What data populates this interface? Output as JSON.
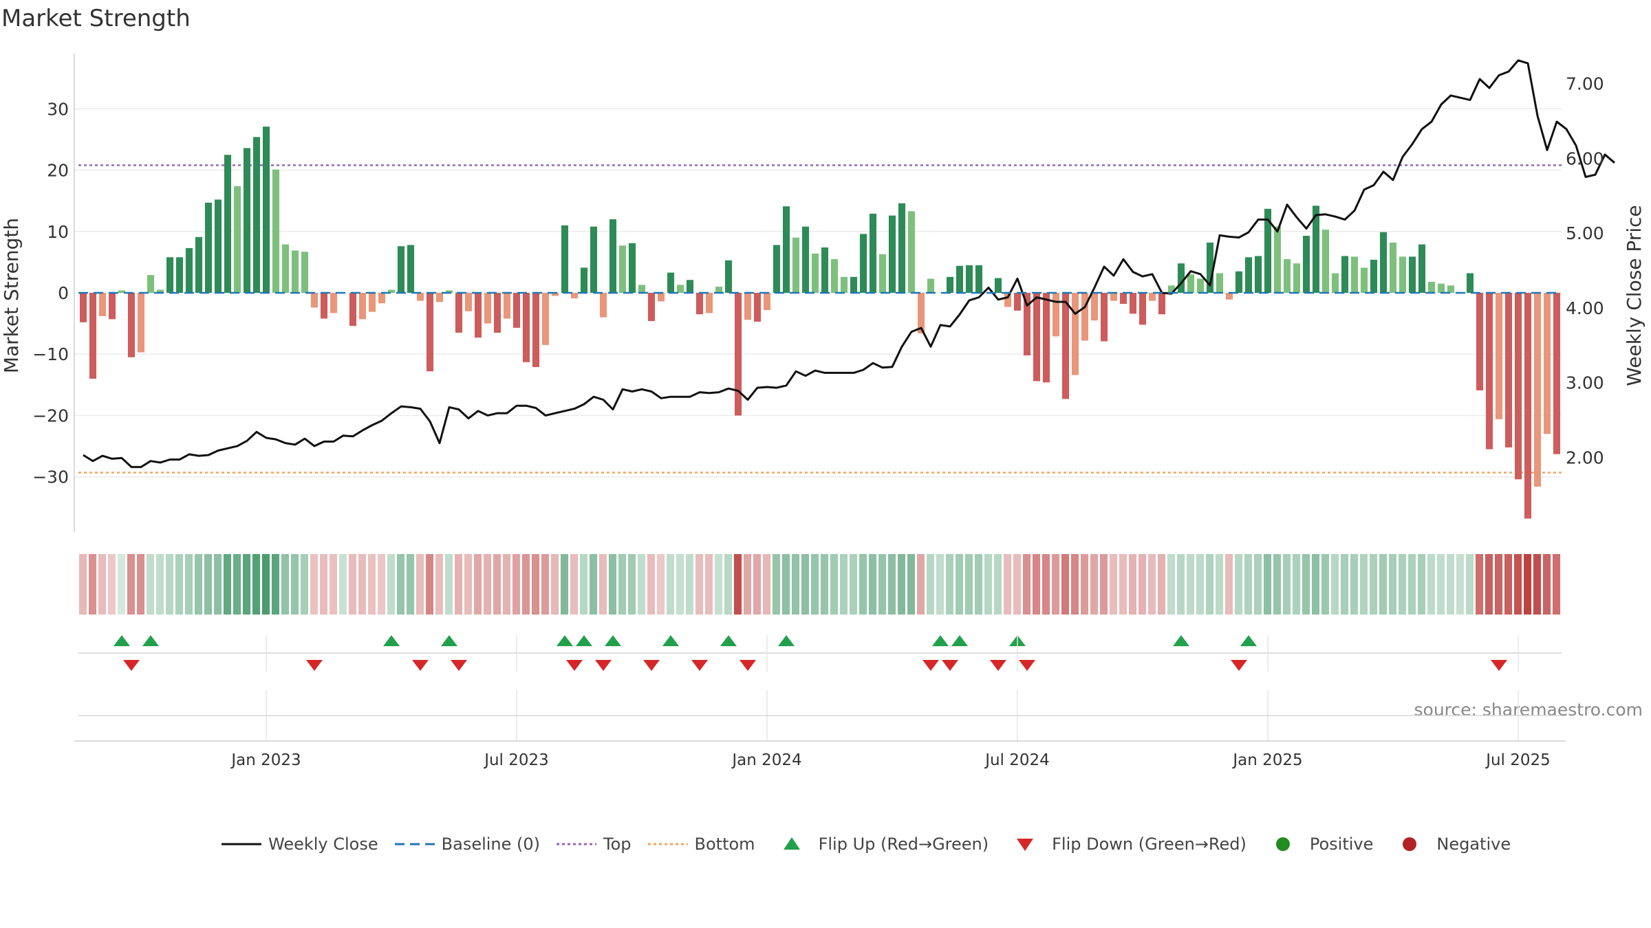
{
  "chart_data": {
    "type": "bar",
    "title": "Market Strength",
    "ylabel": "Market Strength",
    "ylabel_right": "Weekly Close Price",
    "source": "source: sharemaestro.com",
    "ylim": [
      -39,
      39
    ],
    "ylim_right": [
      1.0,
      7.4
    ],
    "yticks_left": [
      30,
      20,
      10,
      0,
      -10,
      -20,
      -30
    ],
    "yticks_right": [
      "7.00",
      "6.00",
      "5.00",
      "4.00",
      "3.00",
      "2.00"
    ],
    "xtick_labels": [
      "Jan 2023",
      "Jul 2023",
      "Jan 2024",
      "Jul 2024",
      "Jan 2025",
      "Jul 2025"
    ],
    "xtick_weeks": [
      19,
      45,
      71,
      97,
      123,
      149
    ],
    "top_line": 20.8,
    "bottom_line": -29.3,
    "colors": {
      "strong_green": "#2e8b57",
      "light_green": "#7dc07d",
      "strong_red": "#cd5c5c",
      "light_red": "#e9967a",
      "close_line": "#111111",
      "baseline": "#1f77b4",
      "top": "#9467bd",
      "bottom": "#f4a460",
      "flip_up": "#22a04b",
      "flip_down": "#d62728",
      "positive": "#228b22",
      "negative": "#b22222"
    },
    "strength": [
      -4.8,
      -14,
      -3.8,
      -4.3,
      0.4,
      -10.5,
      -9.7,
      2.9,
      0.5,
      5.8,
      5.8,
      7.3,
      9.1,
      14.7,
      15.2,
      22.5,
      17.4,
      23.6,
      25.4,
      27.1,
      20.1,
      7.9,
      6.9,
      6.7,
      -2.4,
      -4.2,
      -3.3,
      0,
      -5.4,
      -4.3,
      -3.1,
      -1.7,
      0.5,
      7.6,
      7.8,
      -1.3,
      -12.8,
      -1.5,
      0.4,
      -6.5,
      -3.0,
      -7.3,
      -5.0,
      -6.5,
      -4.2,
      -5.7,
      -11.3,
      -12.1,
      -8.5,
      -0.5,
      11.0,
      -0.9,
      4.1,
      10.8,
      -4.0,
      12.0,
      7.7,
      8.1,
      1.3,
      -4.6,
      -1.4,
      3.3,
      1.3,
      2.1,
      -3.5,
      -3.3,
      1.0,
      5.3,
      -20.0,
      -4.4,
      -4.7,
      -2.8,
      7.8,
      14.1,
      9.0,
      10.8,
      6.4,
      7.4,
      5.5,
      2.6,
      2.6,
      9.6,
      12.9,
      6.3,
      12.6,
      14.6,
      13.3,
      -6.6,
      2.3,
      0,
      2.6,
      4.4,
      4.5,
      4.5,
      0,
      2.4,
      -2.3,
      -2.9,
      -10.2,
      -14.4,
      -14.6,
      -7.1,
      -17.3,
      -13.4,
      -7.8,
      -4.5,
      -7.9,
      -1.3,
      -1.8,
      -3.4,
      -5.2,
      -1.3,
      -3.5,
      1.2,
      4.8,
      3.0,
      2.3,
      8.2,
      3.2,
      -1.1,
      3.5,
      5.8,
      6.0,
      13.7,
      10.8,
      5.5,
      4.8,
      9.3,
      14.2,
      10.3,
      3.2,
      6.0,
      5.9,
      4.1,
      5.4,
      9.9,
      8.2,
      5.9,
      5.9,
      7.9,
      1.8,
      1.5,
      1.2,
      0,
      3.2,
      -15.9,
      -25.5,
      -20.6,
      -25.2,
      -30.4,
      -36.8,
      -31.6,
      -23.0,
      -26.3
    ],
    "weekly_close": [
      2.03,
      1.95,
      2.02,
      1.98,
      1.99,
      1.87,
      1.87,
      1.95,
      1.93,
      1.97,
      1.97,
      2.04,
      2.02,
      2.03,
      2.09,
      2.12,
      2.15,
      2.22,
      2.34,
      2.26,
      2.24,
      2.19,
      2.17,
      2.25,
      2.15,
      2.21,
      2.21,
      2.29,
      2.28,
      2.36,
      2.43,
      2.49,
      2.59,
      2.68,
      2.67,
      2.65,
      2.48,
      2.19,
      2.67,
      2.64,
      2.52,
      2.62,
      2.56,
      2.59,
      2.59,
      2.69,
      2.69,
      2.66,
      2.56,
      2.59,
      2.62,
      2.65,
      2.71,
      2.81,
      2.77,
      2.64,
      2.91,
      2.88,
      2.91,
      2.88,
      2.79,
      2.81,
      2.81,
      2.81,
      2.87,
      2.86,
      2.87,
      2.92,
      2.89,
      2.77,
      2.93,
      2.94,
      2.93,
      2.96,
      3.15,
      3.09,
      3.16,
      3.13,
      3.13,
      3.13,
      3.13,
      3.17,
      3.26,
      3.2,
      3.21,
      3.48,
      3.68,
      3.73,
      3.48,
      3.77,
      3.75,
      3.91,
      4.1,
      4.14,
      4.27,
      4.11,
      4.14,
      4.39,
      4.03,
      4.14,
      4.11,
      4.08,
      4.08,
      3.92,
      4.01,
      4.27,
      4.55,
      4.43,
      4.65,
      4.48,
      4.42,
      4.45,
      4.2,
      4.19,
      4.33,
      4.49,
      4.45,
      4.3,
      4.97,
      4.95,
      4.94,
      5.01,
      5.18,
      5.18,
      5.02,
      5.38,
      5.21,
      5.06,
      5.24,
      5.25,
      5.22,
      5.18,
      5.3,
      5.58,
      5.64,
      5.82,
      5.71,
      6.02,
      6.19,
      6.39,
      6.49,
      6.72,
      6.84,
      6.81,
      6.78,
      7.06,
      6.94,
      7.11,
      7.16,
      7.31,
      7.27,
      6.57,
      6.11,
      6.49,
      6.39,
      6.17,
      5.75,
      5.78,
      6.05,
      5.94
    ],
    "band_levels": [
      0.32,
      0.5,
      0.3,
      0.25,
      0.2,
      0.5,
      0.5,
      0.3,
      0.3,
      0.35,
      0.4,
      0.42,
      0.5,
      0.55,
      0.55,
      0.75,
      0.7,
      0.78,
      0.82,
      0.85,
      0.78,
      0.52,
      0.5,
      0.42,
      0.28,
      0.3,
      0.28,
      0.26,
      0.3,
      0.3,
      0.28,
      0.26,
      0.3,
      0.5,
      0.5,
      0.3,
      0.55,
      0.3,
      0.3,
      0.35,
      0.3,
      0.4,
      0.35,
      0.4,
      0.35,
      0.42,
      0.48,
      0.5,
      0.45,
      0.32,
      0.6,
      0.3,
      0.35,
      0.55,
      0.3,
      0.55,
      0.45,
      0.45,
      0.3,
      0.3,
      0.25,
      0.3,
      0.28,
      0.3,
      0.3,
      0.3,
      0.28,
      0.35,
      0.8,
      0.4,
      0.4,
      0.32,
      0.5,
      0.55,
      0.52,
      0.55,
      0.5,
      0.5,
      0.45,
      0.4,
      0.4,
      0.5,
      0.55,
      0.5,
      0.55,
      0.6,
      0.6,
      0.4,
      0.35,
      0.3,
      0.4,
      0.45,
      0.45,
      0.45,
      0.35,
      0.35,
      0.3,
      0.3,
      0.5,
      0.55,
      0.55,
      0.45,
      0.6,
      0.55,
      0.45,
      0.4,
      0.45,
      0.3,
      0.3,
      0.35,
      0.35,
      0.3,
      0.35,
      0.3,
      0.35,
      0.32,
      0.32,
      0.38,
      0.32,
      0.3,
      0.35,
      0.38,
      0.4,
      0.55,
      0.5,
      0.42,
      0.4,
      0.5,
      0.55,
      0.48,
      0.35,
      0.42,
      0.42,
      0.38,
      0.4,
      0.45,
      0.42,
      0.4,
      0.4,
      0.42,
      0.32,
      0.3,
      0.3,
      0.28,
      0.32,
      0.65,
      0.72,
      0.7,
      0.72,
      0.78,
      0.85,
      0.8,
      0.7,
      0.65
    ],
    "flip_up_weeks": [
      4,
      7,
      32,
      38,
      50,
      52,
      55,
      61,
      67,
      73,
      89,
      91,
      97,
      114,
      121
    ],
    "flip_down_weeks": [
      5,
      24,
      35,
      39,
      51,
      54,
      59,
      64,
      69,
      88,
      90,
      95,
      98,
      120,
      147
    ],
    "legend": {
      "close": "Weekly Close",
      "baseline": "Baseline (0)",
      "top": "Top",
      "bottom": "Bottom",
      "flip_up": "Flip Up (Red→Green)",
      "flip_down": "Flip Down (Green→Red)",
      "positive": "Positive",
      "negative": "Negative"
    }
  }
}
